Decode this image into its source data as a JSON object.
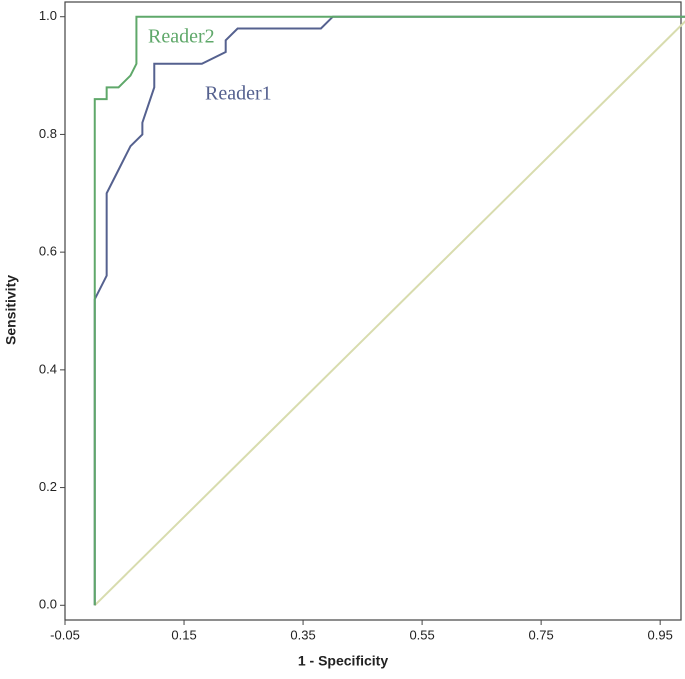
{
  "chart_data": {
    "type": "line",
    "x_label": "1 - Specificity",
    "y_label": "Sensitivity",
    "xlim": [
      -0.05,
      0.985
    ],
    "ylim": [
      -0.025,
      1.025
    ],
    "xticks": [
      -0.05,
      0.15,
      0.35,
      0.55,
      0.75,
      0.95
    ],
    "yticks": [
      {
        "value": 0,
        "label": "0.0"
      },
      0.2,
      0.4,
      0.6,
      0.8,
      {
        "value": 1,
        "label": "1.0"
      }
    ],
    "series": [
      {
        "color": "#d8dcae",
        "x": [
          0,
          1
        ],
        "values": [
          0,
          1
        ]
      },
      {
        "name": "Reader1",
        "color": "#55618f",
        "x": [
          0,
          0,
          0.02,
          0.02,
          0.04,
          0.06,
          0.08,
          0.08,
          0.1,
          0.1,
          0.18,
          0.22,
          0.22,
          0.24,
          0.38,
          0.4,
          1
        ],
        "values": [
          0,
          0.52,
          0.56,
          0.7,
          0.74,
          0.78,
          0.8,
          0.82,
          0.88,
          0.92,
          0.92,
          0.94,
          0.96,
          0.98,
          0.98,
          1,
          1
        ]
      },
      {
        "name": "Reader2",
        "color": "#5fa86a",
        "x": [
          0,
          0,
          0.02,
          0.02,
          0.04,
          0.06,
          0.07,
          0.07,
          0.07,
          1
        ],
        "values": [
          0,
          0.86,
          0.86,
          0.88,
          0.88,
          0.9,
          0.92,
          0.96,
          1,
          1
        ]
      }
    ]
  }
}
